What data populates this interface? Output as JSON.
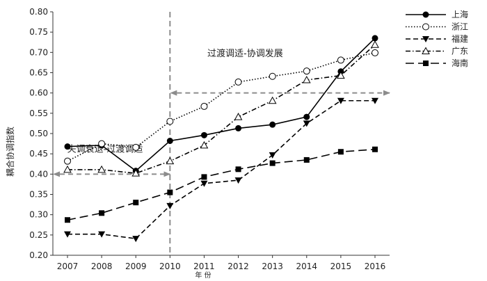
{
  "chart_data": {
    "type": "line",
    "title": "",
    "xlabel": "年 份",
    "ylabel": "耦合协调指数",
    "x": [
      2007,
      2008,
      2009,
      2010,
      2011,
      2012,
      2013,
      2014,
      2015,
      2016
    ],
    "ylim": [
      0.2,
      0.8
    ],
    "yticks": [
      "0.20",
      "0.25",
      "0.30",
      "0.35",
      "0.40",
      "0.45",
      "0.50",
      "0.55",
      "0.60",
      "0.65",
      "0.70",
      "0.75",
      "0.80"
    ],
    "grid": false,
    "legend_position": "top-right",
    "series": [
      {
        "name": "上海",
        "style": "solid",
        "marker": "filled-circle",
        "color": "#000000",
        "values": [
          0.468,
          0.471,
          0.408,
          0.482,
          0.496,
          0.513,
          0.522,
          0.541,
          0.653,
          0.735
        ]
      },
      {
        "name": "浙江",
        "style": "dotted",
        "marker": "open-circle",
        "color": "#000000",
        "values": [
          0.432,
          0.475,
          0.466,
          0.53,
          0.567,
          0.627,
          0.641,
          0.654,
          0.681,
          0.699
        ]
      },
      {
        "name": "福建",
        "style": "dashed",
        "marker": "filled-triangle-down",
        "color": "#000000",
        "values": [
          0.252,
          0.252,
          0.241,
          0.322,
          0.377,
          0.385,
          0.447,
          0.525,
          0.581,
          0.581
        ]
      },
      {
        "name": "广东",
        "style": "dash-dot",
        "marker": "open-triangle-up",
        "color": "#000000",
        "values": [
          0.411,
          0.411,
          0.402,
          0.432,
          0.471,
          0.541,
          0.581,
          0.632,
          0.643,
          0.719
        ]
      },
      {
        "name": "海南",
        "style": "long-dash",
        "marker": "filled-square",
        "color": "#000000",
        "values": [
          0.287,
          0.304,
          0.33,
          0.355,
          0.393,
          0.412,
          0.427,
          0.435,
          0.455,
          0.461
        ]
      }
    ],
    "annotations": [
      {
        "text": "失调衰退-过渡调适",
        "x": 2008.1,
        "y": 0.455
      },
      {
        "text": "过渡调适-协调发展",
        "x": 2012.2,
        "y": 0.69
      }
    ],
    "divider": {
      "x": 2010,
      "color": "#8c8c8c"
    },
    "arrows": [
      {
        "y": 0.4,
        "x_from": 2007,
        "x_to": 2010,
        "color": "#8c8c8c"
      },
      {
        "y": 0.6,
        "x_from": 2010,
        "x_to": 2016,
        "color": "#8c8c8c"
      }
    ]
  }
}
